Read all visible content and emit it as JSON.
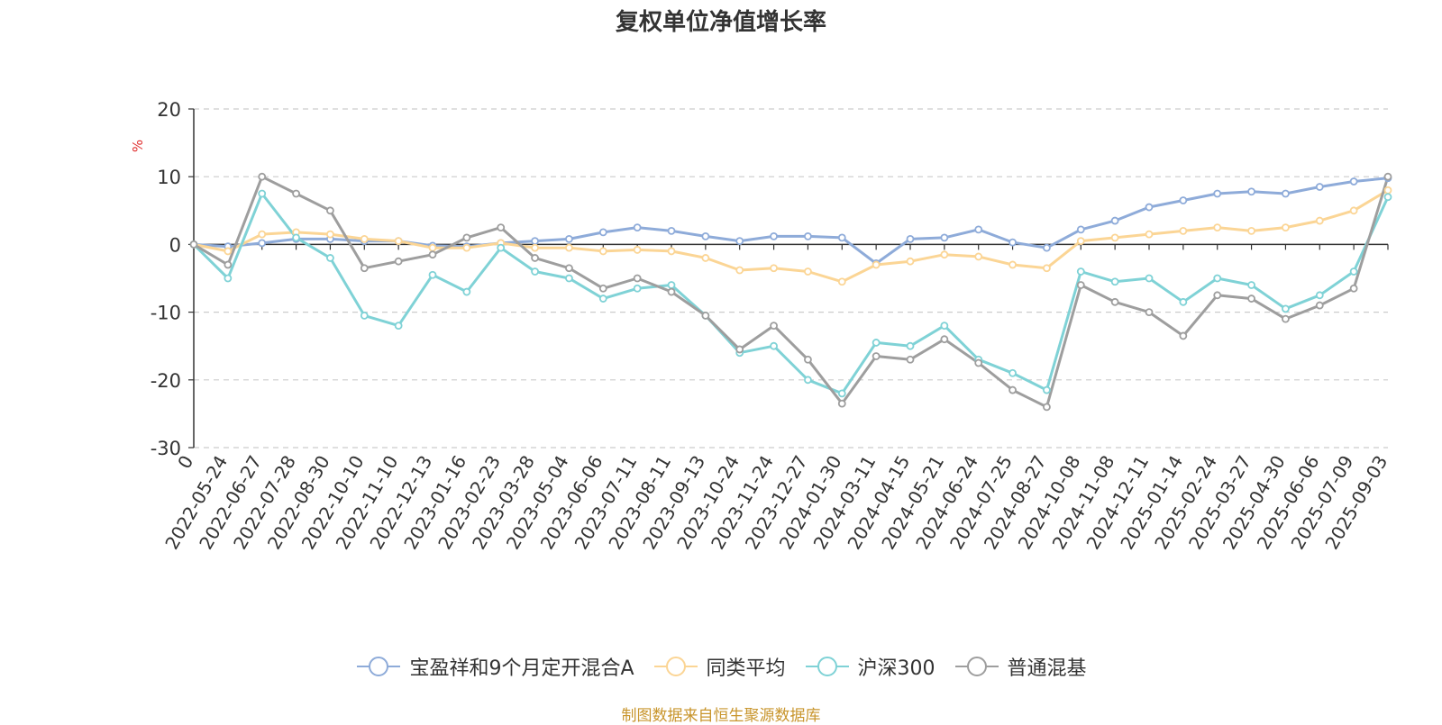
{
  "title": "复权单位净值增长率",
  "source_note": "制图数据来自恒生聚源数据库",
  "chart_data": {
    "type": "line",
    "title": "复权单位净值增长率",
    "ylabel": "%",
    "ylim": [
      -30,
      20
    ],
    "yticks": [
      20,
      10,
      0,
      -10,
      -20,
      -30
    ],
    "grid": true,
    "legend_position": "bottom",
    "x_categories": [
      "0",
      "2022-05-24",
      "2022-06-27",
      "2022-07-28",
      "2022-08-30",
      "2022-10-10",
      "2022-11-10",
      "2022-12-13",
      "2023-01-16",
      "2023-02-23",
      "2023-03-28",
      "2023-05-04",
      "2023-06-06",
      "2023-07-11",
      "2023-08-11",
      "2023-09-13",
      "2023-10-24",
      "2023-11-24",
      "2023-12-27",
      "2024-01-30",
      "2024-03-11",
      "2024-04-15",
      "2024-05-21",
      "2024-06-24",
      "2024-07-25",
      "2024-08-27",
      "2024-10-08",
      "2024-11-08",
      "2024-12-11",
      "2025-01-14",
      "2025-02-24",
      "2025-03-27",
      "2025-04-30",
      "2025-06-06",
      "2025-07-09",
      "2025-09-03"
    ],
    "series": [
      {
        "name": "宝盈祥和9个月定开混合A",
        "color": "#8eabd9",
        "values": [
          0,
          -0.3,
          0.2,
          0.8,
          0.8,
          0.5,
          0.5,
          -0.2,
          -0.3,
          0.2,
          0.5,
          0.8,
          1.8,
          2.5,
          2.0,
          1.2,
          0.5,
          1.2,
          1.2,
          1.0,
          -2.8,
          0.8,
          1.0,
          2.2,
          0.3,
          -0.5,
          2.2,
          3.5,
          5.5,
          6.5,
          7.5,
          7.8,
          7.5,
          8.5,
          9.3,
          9.8
        ]
      },
      {
        "name": "同类平均",
        "color": "#fbd595",
        "values": [
          0,
          -1.0,
          1.5,
          1.8,
          1.5,
          0.8,
          0.5,
          -0.5,
          -0.5,
          0.2,
          -0.5,
          -0.5,
          -1.0,
          -0.8,
          -1.0,
          -2.0,
          -3.8,
          -3.5,
          -4.0,
          -5.5,
          -3.0,
          -2.5,
          -1.5,
          -1.8,
          -3.0,
          -3.5,
          0.5,
          1.0,
          1.5,
          2.0,
          2.5,
          2.0,
          2.5,
          3.5,
          5.0,
          8.0
        ]
      },
      {
        "name": "沪深300",
        "color": "#7fd2d6",
        "values": [
          0,
          -5.0,
          7.5,
          1.0,
          -2.0,
          -10.5,
          -12.0,
          -4.5,
          -7.0,
          -0.5,
          -4.0,
          -5.0,
          -8.0,
          -6.5,
          -6.0,
          -10.5,
          -16.0,
          -15.0,
          -20.0,
          -22.0,
          -14.5,
          -15.0,
          -12.0,
          -17.0,
          -19.0,
          -21.5,
          -4.0,
          -5.5,
          -5.0,
          -8.5,
          -5.0,
          -6.0,
          -9.5,
          -7.5,
          -4.0,
          7.0
        ]
      },
      {
        "name": "普通混基",
        "color": "#9e9e9e",
        "values": [
          0,
          -3.0,
          10.0,
          7.5,
          5.0,
          -3.5,
          -2.5,
          -1.5,
          1.0,
          2.5,
          -2.0,
          -3.5,
          -6.5,
          -5.0,
          -7.0,
          -10.5,
          -15.5,
          -12.0,
          -17.0,
          -23.5,
          -16.5,
          -17.0,
          -14.0,
          -17.5,
          -21.5,
          -24.0,
          -6.0,
          -8.5,
          -10.0,
          -13.5,
          -7.5,
          -8.0,
          -11.0,
          -9.0,
          -6.5,
          10.0
        ]
      }
    ]
  }
}
